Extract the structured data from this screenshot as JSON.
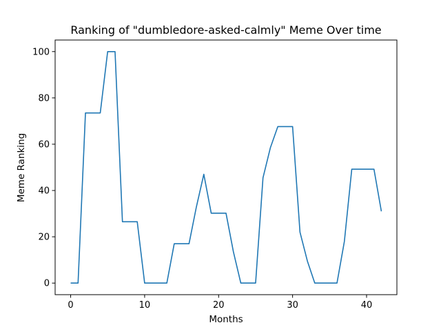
{
  "chart_data": {
    "type": "line",
    "title": "Ranking of \"dumbledore-asked-calmly\" Meme Over time",
    "xlabel": "Months",
    "ylabel": "Meme Ranking",
    "xlim": [
      -2.1,
      44.1
    ],
    "ylim": [
      -5,
      105
    ],
    "xticks": [
      0,
      10,
      20,
      30,
      40
    ],
    "yticks": [
      0,
      20,
      40,
      60,
      80,
      100
    ],
    "grid": false,
    "legend": "none",
    "series": [
      {
        "color": "#1f77b4",
        "x": [
          0,
          1,
          2,
          3,
          4,
          5,
          6,
          7,
          8,
          9,
          10,
          11,
          12,
          13,
          14,
          15,
          16,
          17,
          18,
          19,
          20,
          21,
          22,
          23,
          24,
          25,
          26,
          27,
          28,
          29,
          30,
          31,
          32,
          33,
          34,
          35,
          36,
          37,
          38,
          39,
          40,
          41,
          42
        ],
        "y": [
          0,
          0,
          73.5,
          73.5,
          73.5,
          100,
          100,
          26.5,
          26.5,
          26.5,
          0,
          0,
          0,
          0,
          17,
          17,
          17,
          33,
          47,
          30.2,
          30.2,
          30.2,
          13.5,
          0,
          0,
          0,
          45.5,
          58.5,
          67.6,
          67.6,
          67.6,
          22,
          9.5,
          0,
          0,
          0,
          0,
          18,
          49.2,
          49.2,
          49.2,
          49.2,
          31
        ]
      }
    ]
  }
}
